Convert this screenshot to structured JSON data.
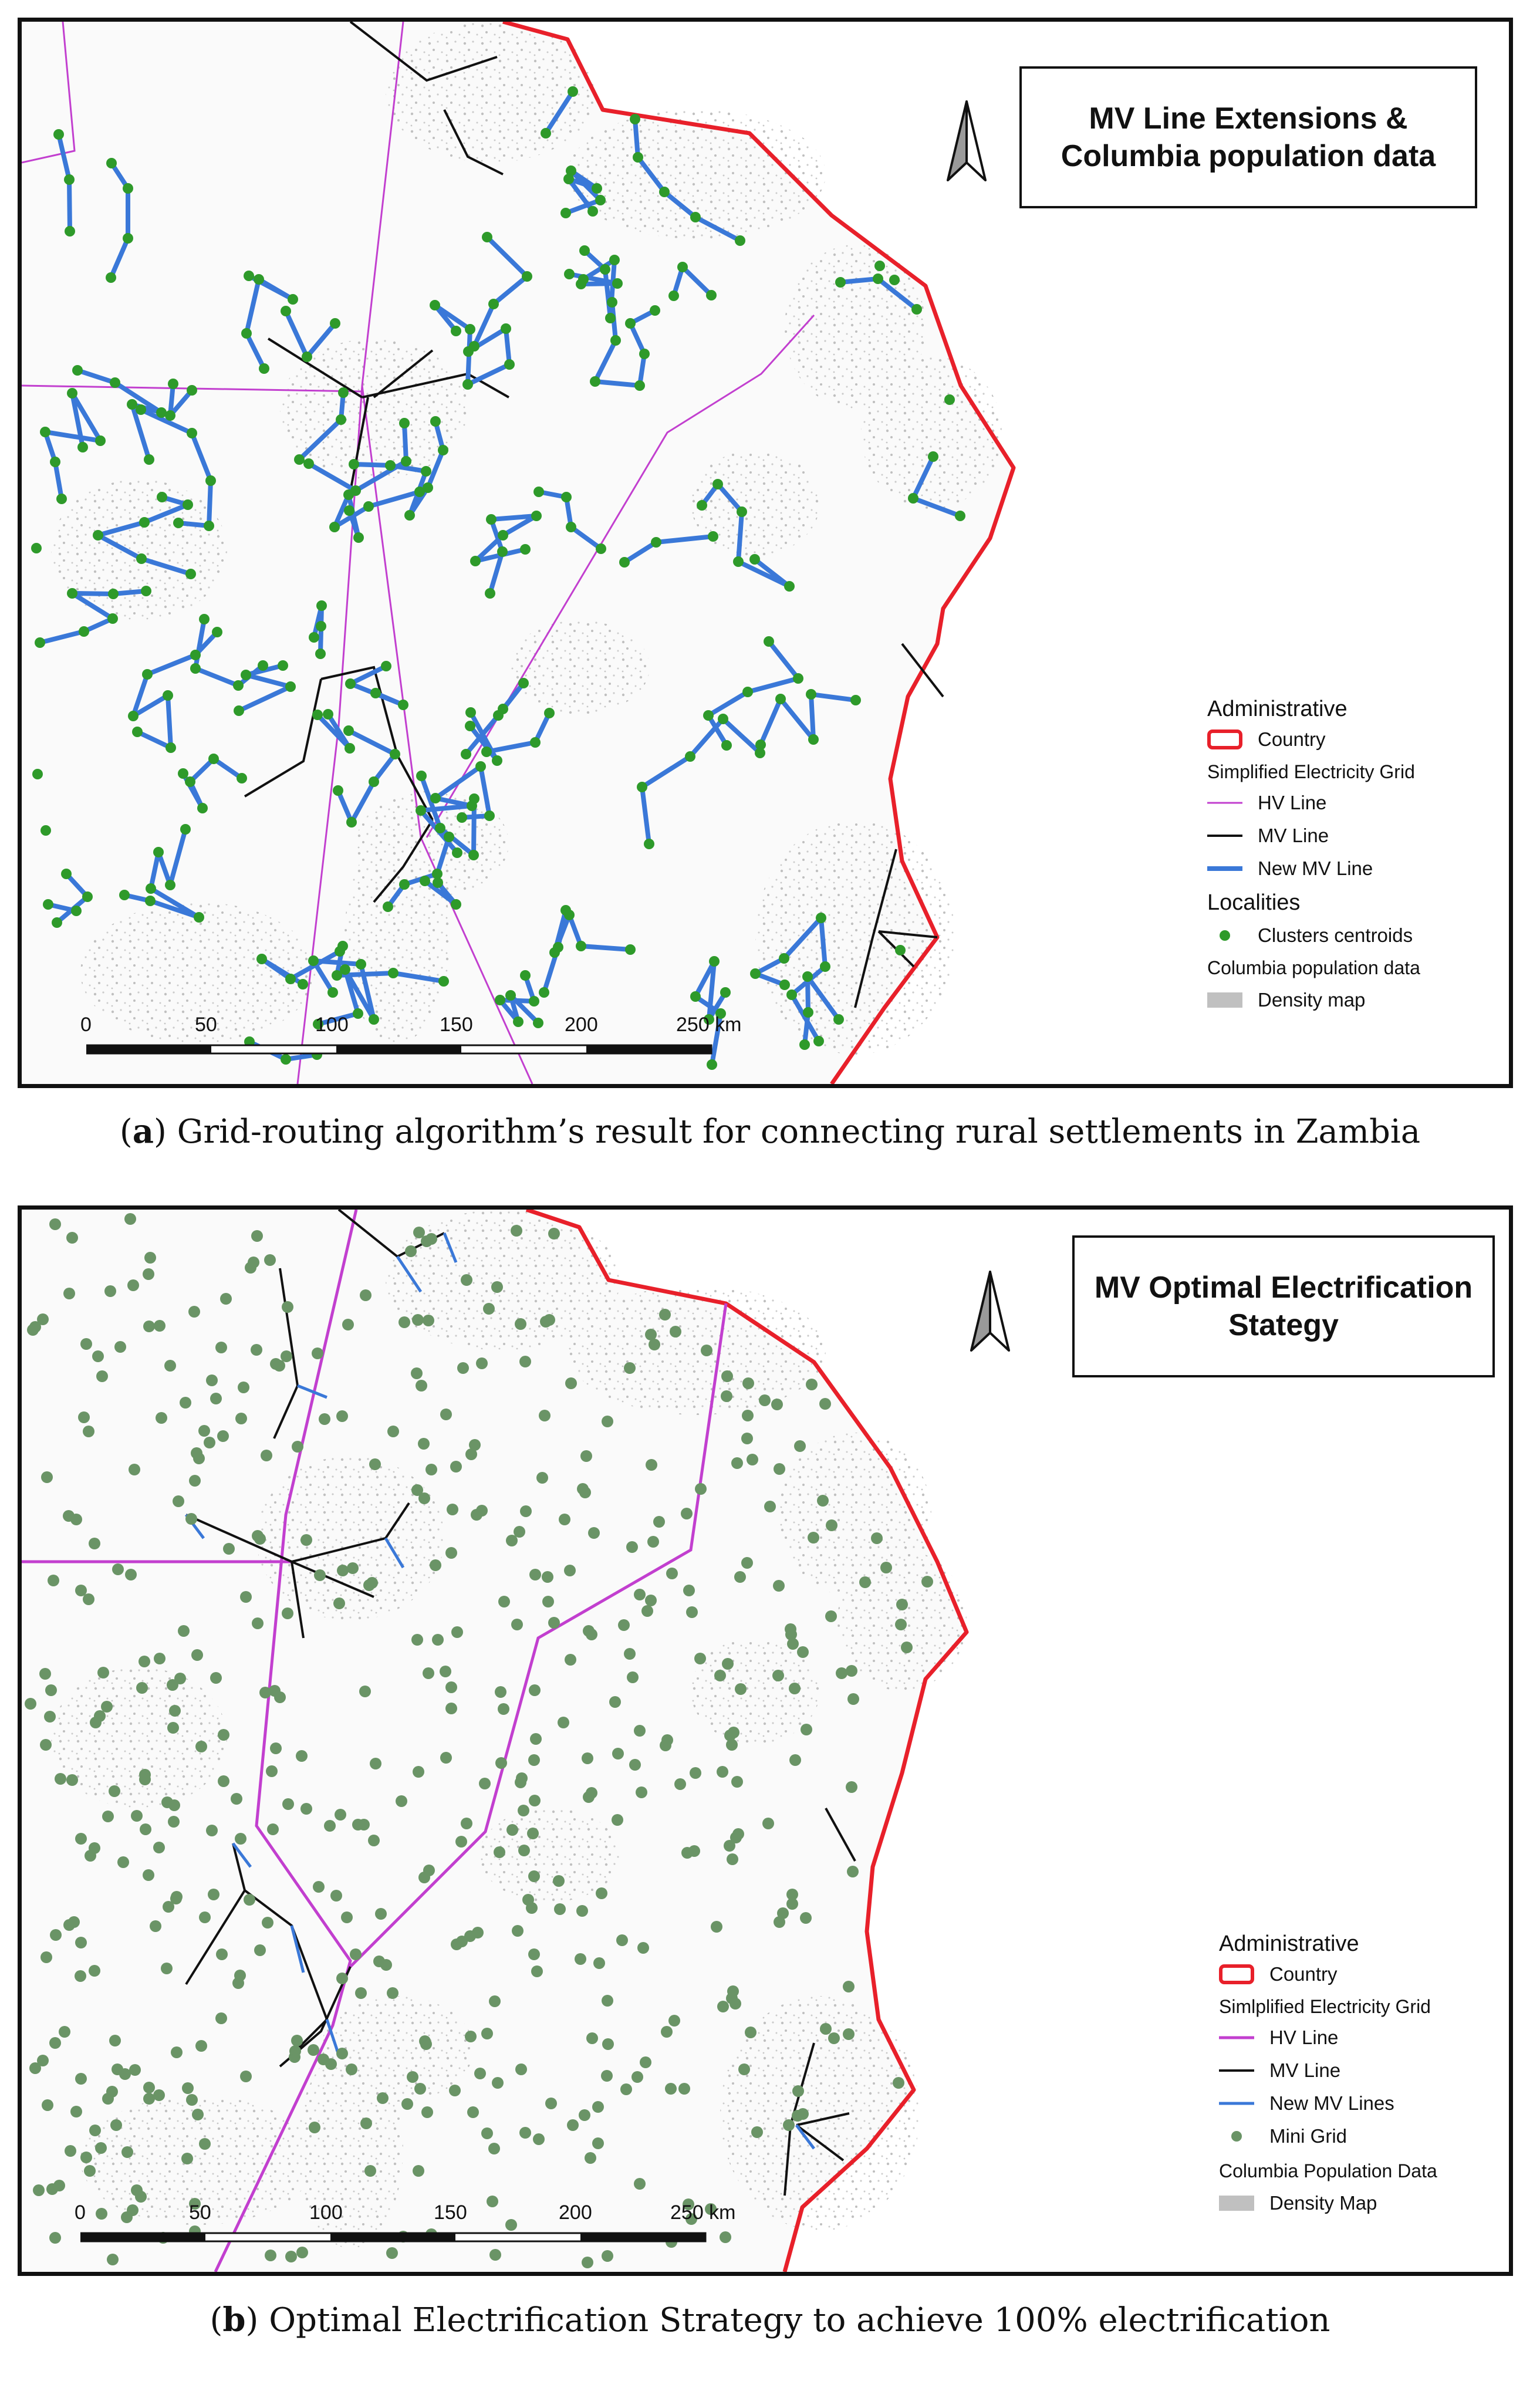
{
  "panels": [
    {
      "title_line1": "MV Line Extensions &",
      "title_line2": "Columbia population data",
      "legend": {
        "administrative": "Administrative",
        "country": "Country",
        "grid_header": "Simplified Electricity Grid",
        "hv_line": "HV Line",
        "mv_line": "MV Line",
        "new_mv_line": "New MV Line",
        "localities": "Localities",
        "clusters": "Clusters centroids",
        "pop_header": "Columbia population data",
        "density": "Density map"
      },
      "scale": {
        "ticks": [
          "0",
          "50",
          "100",
          "150",
          "200",
          "250 km"
        ]
      },
      "caption_letter": "a",
      "caption_text": "Grid-routing algorithm’s result for connecting rural settlements in Zambia"
    },
    {
      "title_line1": "MV Optimal Electrification",
      "title_line2": "Stategy",
      "legend": {
        "administrative": "Administrative",
        "country": "Country",
        "grid_header": "Simlplified Electricity Grid",
        "hv_line": "HV Line",
        "mv_line": "MV Line",
        "new_mv_line": "New MV Lines",
        "mini_grid": "Mini Grid",
        "pop_header": "Columbia Population Data",
        "density": "Density Map"
      },
      "scale": {
        "ticks": [
          "0",
          "50",
          "100",
          "150",
          "200",
          "250 km"
        ]
      },
      "caption_letter": "b",
      "caption_text": "Optimal Electrification Strategy to achieve 100% electrification"
    }
  ],
  "colors": {
    "country_border": "#e8202a",
    "hv_line": "#c23fcf",
    "mv_line": "#111111",
    "new_mv_line": "#3a78d8",
    "cluster_centroid": "#2e9a2a",
    "mini_grid": "#6a9466",
    "density": "#c0c0c0"
  },
  "icons": [
    "north-arrow-icon"
  ]
}
